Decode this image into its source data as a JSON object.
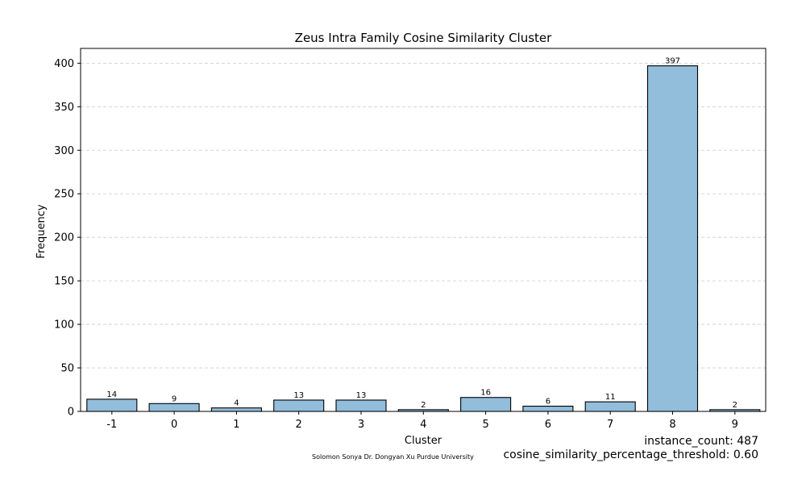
{
  "chart_data": {
    "type": "bar",
    "title": "Zeus Intra Family Cosine Similarity Cluster",
    "xlabel": "Cluster",
    "ylabel": "Frequency",
    "categories": [
      "-1",
      "0",
      "1",
      "2",
      "3",
      "4",
      "5",
      "6",
      "7",
      "8",
      "9"
    ],
    "values": [
      14,
      9,
      4,
      13,
      13,
      2,
      16,
      6,
      11,
      397,
      2
    ],
    "ylim": [
      0,
      417
    ],
    "yticks": [
      0,
      50,
      100,
      150,
      200,
      250,
      300,
      350,
      400
    ],
    "grid": "y-dashed",
    "bar_color": "#92bddb",
    "bar_edge_color": "#000000",
    "data_labels": true
  },
  "footer": {
    "credits": "Solomon Sonya    Dr. Dongyan Xu    Purdue University",
    "instance_count": "instance_count: 487",
    "threshold": "cosine_similarity_percentage_threshold: 0.60"
  }
}
